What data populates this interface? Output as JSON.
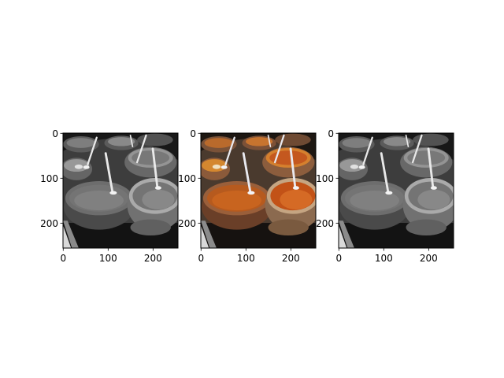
{
  "figure": {
    "background": "#ffffff"
  },
  "chart_data": [
    {
      "type": "image",
      "panel": "left",
      "rendering": "grayscale",
      "subject": "clay pots of stew with serving spoons",
      "xlim": [
        0,
        255
      ],
      "ylim": [
        255,
        0
      ],
      "xticks": [
        0,
        100,
        200
      ],
      "yticks": [
        0,
        100,
        200
      ]
    },
    {
      "type": "image",
      "panel": "middle",
      "rendering": "color",
      "subject": "clay pots of stew with serving spoons",
      "xlim": [
        0,
        255
      ],
      "ylim": [
        255,
        0
      ],
      "xticks": [
        0,
        100,
        200
      ],
      "yticks": [
        0,
        100,
        200
      ]
    },
    {
      "type": "image",
      "panel": "right",
      "rendering": "grayscale",
      "subject": "clay pots of stew with serving spoons",
      "xlim": [
        0,
        255
      ],
      "ylim": [
        255,
        0
      ],
      "xticks": [
        0,
        100,
        200
      ],
      "yticks": [
        0,
        100,
        200
      ]
    }
  ]
}
